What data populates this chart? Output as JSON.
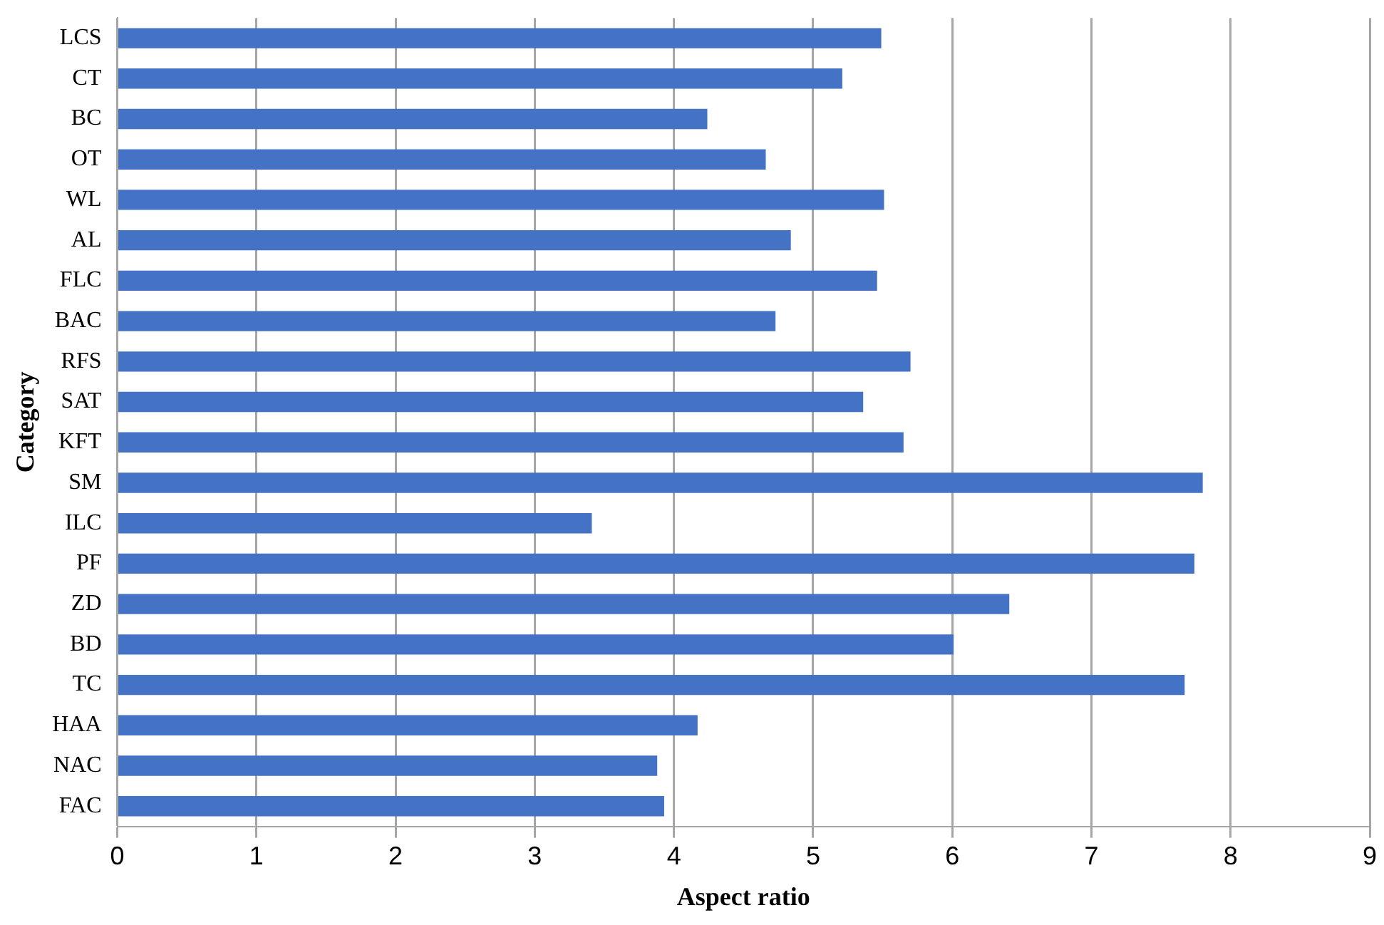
{
  "chart_data": {
    "type": "bar",
    "orientation": "horizontal",
    "xlabel": "Aspect ratio",
    "ylabel": "Category",
    "categories": [
      "LCS",
      "CT",
      "BC",
      "OT",
      "WL",
      "AL",
      "FLC",
      "BAC",
      "RFS",
      "SAT",
      "KFT",
      "SM",
      "ILC",
      "PF",
      "ZD",
      "BD",
      "TC",
      "HAA",
      "NAC",
      "FAC"
    ],
    "values": [
      5.49,
      5.21,
      4.24,
      4.66,
      5.51,
      4.84,
      5.46,
      4.73,
      5.7,
      5.36,
      5.65,
      7.8,
      3.41,
      7.74,
      6.41,
      6.01,
      7.67,
      4.17,
      3.88,
      3.93
    ],
    "color": "#4472c4",
    "xlim": [
      0,
      9
    ],
    "xticks": [
      0,
      1,
      2,
      3,
      4,
      5,
      6,
      7,
      8,
      9
    ],
    "grid": "x",
    "legend": false
  }
}
